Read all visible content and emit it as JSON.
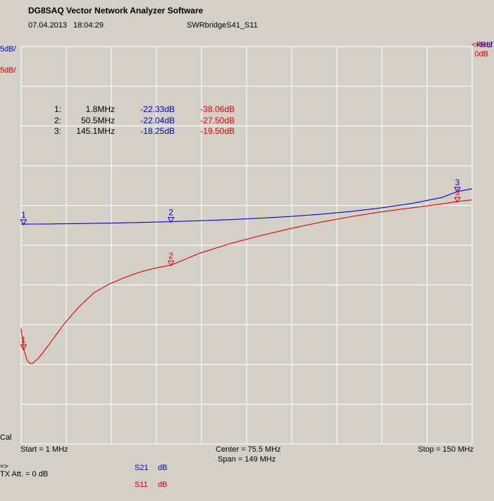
{
  "header": {
    "app_title": "DG8SAQ Vector Network Analyzer Software",
    "date": "07.04.2013",
    "time": "18:04:29",
    "filename": "SWRbridgeS41_S11"
  },
  "scales": {
    "blue": "5dB/",
    "red": "5dB/",
    "ref_blue": "<Ref",
    "ref_red": "<Ref2",
    "ref_value": "0dB"
  },
  "colors": {
    "s21": "#0000cc",
    "s11": "#e00000",
    "grid": "#ffffff",
    "background": "#d4d0c8"
  },
  "footer": {
    "cal": "Cal",
    "start": "Start = 1 MHz",
    "center": "Center = 75.5 MHz",
    "span": "Span = 149 MHz",
    "stop": "Stop = 150 MHz",
    "arrow": "=>",
    "tx_att": "TX Att.  = 0 dB",
    "s21_name": "S21",
    "s21_unit": "dB",
    "s11_name": "S11",
    "s11_unit": "dB"
  },
  "markers_table": [
    {
      "num": "1:",
      "freq": "1.8MHz",
      "s21": "-22.33dB",
      "s11": "-38.06dB"
    },
    {
      "num": "2:",
      "freq": "50.5MHz",
      "s21": "-22.04dB",
      "s11": "-27.50dB"
    },
    {
      "num": "3:",
      "freq": "145.1MHz",
      "s21": "-18.25dB",
      "s11": "-19.50dB"
    }
  ],
  "chart_data": {
    "type": "line",
    "x_unit": "MHz",
    "xlim": [
      1,
      150
    ],
    "ylim": [
      -50,
      0
    ],
    "grid": true,
    "x_divisions": 10,
    "y_divisions": 10,
    "series": [
      {
        "name": "S21",
        "unit": "dB",
        "color": "#0000cc",
        "x": [
          1,
          10,
          20,
          30,
          40,
          50,
          60,
          70,
          80,
          90,
          100,
          110,
          120,
          130,
          140,
          145.1,
          150
        ],
        "y": [
          -22.35,
          -22.33,
          -22.28,
          -22.22,
          -22.14,
          -22.04,
          -21.92,
          -21.78,
          -21.6,
          -21.38,
          -21.1,
          -20.75,
          -20.3,
          -19.75,
          -19.0,
          -18.25,
          -17.9
        ]
      },
      {
        "name": "S11",
        "unit": "dB",
        "color": "#e00000",
        "x": [
          1,
          1.8,
          3,
          4,
          5,
          7,
          10,
          15,
          20,
          25,
          30,
          35,
          40,
          45,
          50.5,
          55,
          60,
          70,
          80,
          90,
          100,
          110,
          120,
          130,
          140,
          145.1,
          150
        ],
        "y": [
          -35.5,
          -38.06,
          -39.5,
          -39.9,
          -39.8,
          -39.1,
          -37.6,
          -35.0,
          -32.8,
          -31.0,
          -29.9,
          -29.1,
          -28.4,
          -27.9,
          -27.5,
          -26.8,
          -26.0,
          -24.8,
          -23.8,
          -22.9,
          -22.1,
          -21.4,
          -20.8,
          -20.3,
          -19.8,
          -19.5,
          -19.3
        ]
      }
    ],
    "markers": [
      {
        "label": "1",
        "x": 1.8,
        "s21": -22.33,
        "s11": -38.06
      },
      {
        "label": "2",
        "x": 50.5,
        "s21": -22.04,
        "s11": -27.5
      },
      {
        "label": "3",
        "x": 145.1,
        "s21": -18.25,
        "s11": -19.5
      }
    ]
  }
}
